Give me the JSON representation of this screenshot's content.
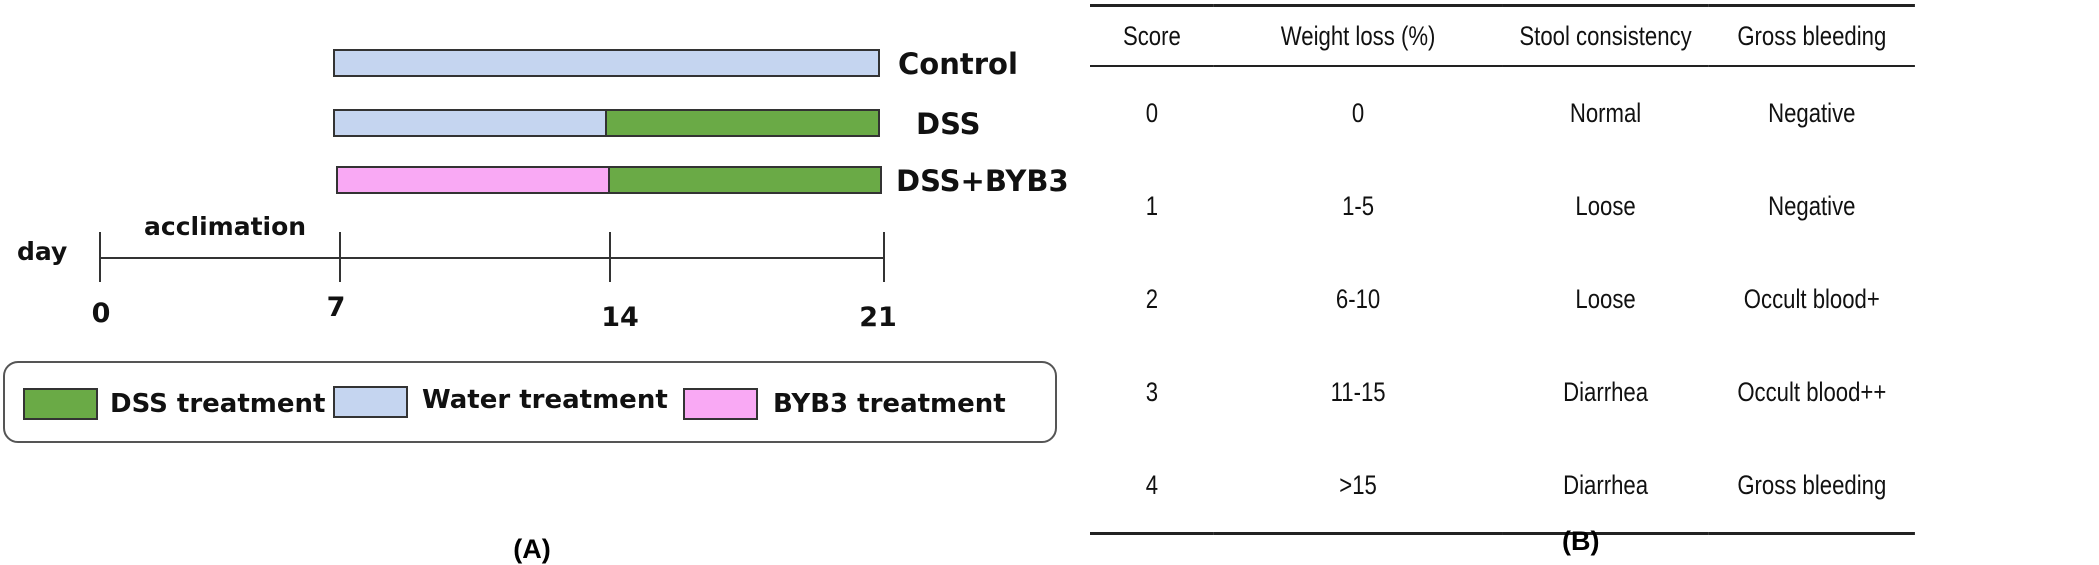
{
  "panel_a": {
    "groups": [
      {
        "label": "Control",
        "segments": [
          {
            "treatment": "water",
            "start": 7,
            "end": 21
          }
        ]
      },
      {
        "label": "DSS",
        "segments": [
          {
            "treatment": "water",
            "start": 7,
            "end": 14
          },
          {
            "treatment": "dss",
            "start": 14,
            "end": 21
          }
        ]
      },
      {
        "label": "DSS+BYB3",
        "segments": [
          {
            "treatment": "byb3",
            "start": 7,
            "end": 14
          },
          {
            "treatment": "dss",
            "start": 14,
            "end": 21
          }
        ]
      }
    ],
    "axis": {
      "label": "day",
      "phase_label": "acclimation",
      "ticks": [
        "0",
        "7",
        "14",
        "21"
      ]
    },
    "legend": [
      {
        "treatment": "dss",
        "label": "DSS treatment"
      },
      {
        "treatment": "water",
        "label": "Water treatment"
      },
      {
        "treatment": "byb3",
        "label": "BYB3 treatment"
      }
    ],
    "colors": {
      "water": "#c5d5f0",
      "dss": "#6aaa46",
      "byb3": "#f9a9f4"
    },
    "caption": "(A)"
  },
  "panel_b": {
    "headers": [
      "Score",
      "Weight loss (%)",
      "Stool consistency",
      "Gross bleeding"
    ],
    "rows": [
      [
        "0",
        "0",
        "Normal",
        "Negative"
      ],
      [
        "1",
        "1-5",
        "Loose",
        "Negative"
      ],
      [
        "2",
        "6-10",
        "Loose",
        "Occult blood+"
      ],
      [
        "3",
        "11-15",
        "Diarrhea",
        "Occult blood++"
      ],
      [
        "4",
        ">15",
        "Diarrhea",
        "Gross bleeding"
      ]
    ],
    "caption": "(B)"
  }
}
